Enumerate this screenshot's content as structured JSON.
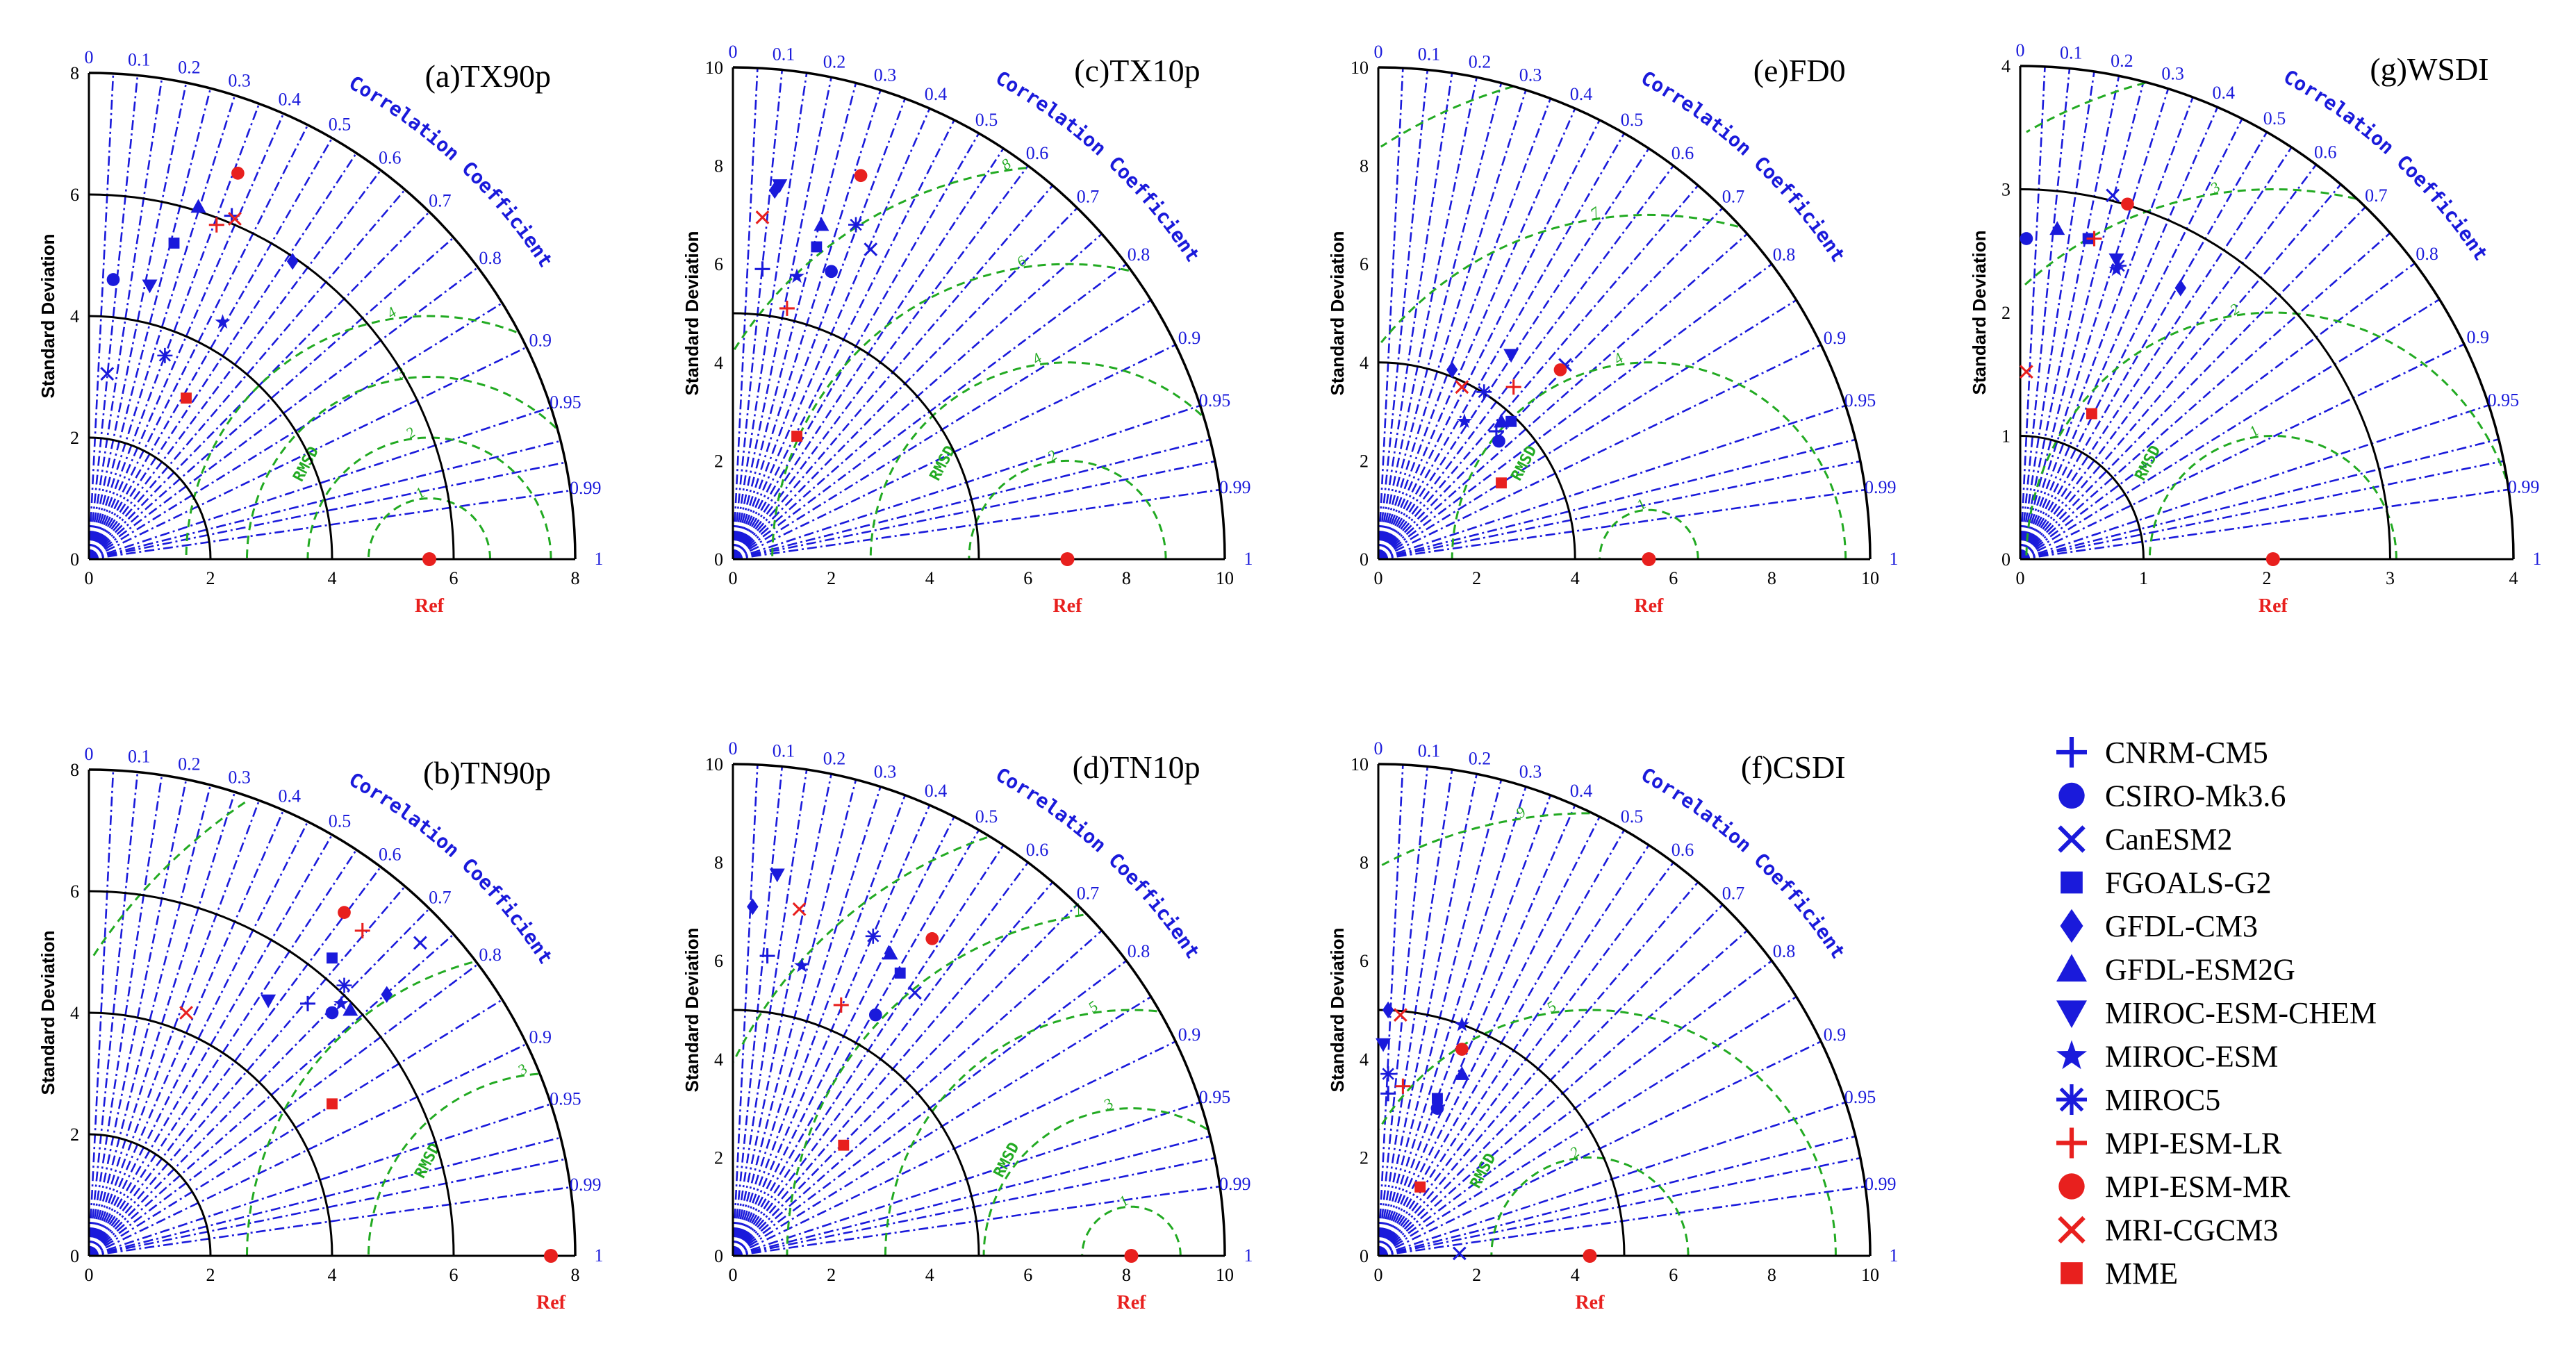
{
  "colors": {
    "model": "#1a1adb",
    "highlight": "#e8201e",
    "rms": "#22aa22",
    "axis": "#000000"
  },
  "labels": {
    "ylabel": "Standard Deviation",
    "ref": "Ref",
    "cc_title": "Correlation Coefficient",
    "rms": "RMSD"
  },
  "correlation_ticks": [
    "0",
    "0.1",
    "0.2",
    "0.3",
    "0.4",
    "0.5",
    "0.6",
    "0.7",
    "0.8",
    "0.9",
    "0.95",
    "0.99",
    "1"
  ],
  "legend": [
    {
      "name": "CNRM-CM5",
      "marker": "plus",
      "color": "#1a1adb"
    },
    {
      "name": "CSIRO-Mk3.6",
      "marker": "circle",
      "color": "#1a1adb"
    },
    {
      "name": "CanESM2",
      "marker": "x",
      "color": "#1a1adb"
    },
    {
      "name": "FGOALS-G2",
      "marker": "square",
      "color": "#1a1adb"
    },
    {
      "name": "GFDL-CM3",
      "marker": "diamond",
      "color": "#1a1adb"
    },
    {
      "name": "GFDL-ESM2G",
      "marker": "triangle",
      "color": "#1a1adb"
    },
    {
      "name": "MIROC-ESM-CHEM",
      "marker": "triangle-down",
      "color": "#1a1adb"
    },
    {
      "name": "MIROC-ESM",
      "marker": "star",
      "color": "#1a1adb"
    },
    {
      "name": "MIROC5",
      "marker": "asterisk",
      "color": "#1a1adb"
    },
    {
      "name": "MPI-ESM-LR",
      "marker": "plus",
      "color": "#e8201e"
    },
    {
      "name": "MPI-ESM-MR",
      "marker": "circle",
      "color": "#e8201e"
    },
    {
      "name": "MRI-CGCM3",
      "marker": "x",
      "color": "#e8201e"
    },
    {
      "name": "MME",
      "marker": "square",
      "color": "#e8201e"
    }
  ],
  "chart_data": [
    {
      "type": "scatter",
      "subtype": "taylor",
      "title": "(a)TX90p",
      "xlim": [
        0,
        8
      ],
      "ylim": [
        0,
        8
      ],
      "ticks": [
        "0",
        "2",
        "4",
        "6",
        "8"
      ],
      "arcs": [
        2,
        4,
        6
      ],
      "ref_std": 5.6,
      "rms_levels": [
        1,
        2,
        3,
        4
      ],
      "points": [
        {
          "model": "CNRM-CM5",
          "x": 2.35,
          "y": 5.65
        },
        {
          "model": "CSIRO-Mk3.6",
          "x": 0.4,
          "y": 4.6
        },
        {
          "model": "CanESM2",
          "x": 0.3,
          "y": 3.05
        },
        {
          "model": "FGOALS-G2",
          "x": 1.4,
          "y": 5.2
        },
        {
          "model": "GFDL-CM3",
          "x": 3.35,
          "y": 4.9
        },
        {
          "model": "GFDL-ESM2G",
          "x": 1.8,
          "y": 5.8
        },
        {
          "model": "MIROC-ESM-CHEM",
          "x": 1.0,
          "y": 4.5
        },
        {
          "model": "MIROC-ESM",
          "x": 2.2,
          "y": 3.9
        },
        {
          "model": "MIROC5",
          "x": 1.25,
          "y": 3.35
        },
        {
          "model": "MPI-ESM-LR",
          "x": 2.1,
          "y": 5.5
        },
        {
          "model": "MPI-ESM-MR",
          "x": 2.45,
          "y": 6.35
        },
        {
          "model": "MRI-CGCM3",
          "x": 2.4,
          "y": 5.6
        },
        {
          "model": "MME",
          "x": 1.6,
          "y": 2.65
        }
      ]
    },
    {
      "type": "scatter",
      "subtype": "taylor",
      "title": "(b)TN90p",
      "xlim": [
        0,
        8
      ],
      "ylim": [
        0,
        8
      ],
      "ticks": [
        "0",
        "2",
        "4",
        "6",
        "8"
      ],
      "arcs": [
        2,
        4,
        6
      ],
      "ref_std": 7.6,
      "rms_levels": [
        3,
        5,
        9
      ],
      "points": [
        {
          "model": "CNRM-CM5",
          "x": 3.6,
          "y": 4.15
        },
        {
          "model": "CSIRO-Mk3.6",
          "x": 4.0,
          "y": 4.0
        },
        {
          "model": "CanESM2",
          "x": 5.45,
          "y": 5.15
        },
        {
          "model": "FGOALS-G2",
          "x": 4.0,
          "y": 4.9
        },
        {
          "model": "GFDL-CM3",
          "x": 4.9,
          "y": 4.3
        },
        {
          "model": "GFDL-ESM2G",
          "x": 4.3,
          "y": 4.05
        },
        {
          "model": "MIROC-ESM-CHEM",
          "x": 2.95,
          "y": 4.2
        },
        {
          "model": "MIROC-ESM",
          "x": 4.15,
          "y": 4.15
        },
        {
          "model": "MIROC5",
          "x": 4.2,
          "y": 4.45
        },
        {
          "model": "MPI-ESM-LR",
          "x": 4.5,
          "y": 5.35
        },
        {
          "model": "MPI-ESM-MR",
          "x": 4.2,
          "y": 5.65
        },
        {
          "model": "MRI-CGCM3",
          "x": 1.6,
          "y": 4.0
        },
        {
          "model": "MME",
          "x": 4.0,
          "y": 2.5
        }
      ]
    },
    {
      "type": "scatter",
      "subtype": "taylor",
      "title": "(c)TX10p",
      "xlim": [
        0,
        10
      ],
      "ylim": [
        0,
        10
      ],
      "ticks": [
        "0",
        "2",
        "4",
        "6",
        "8",
        "10"
      ],
      "arcs": [
        5
      ],
      "ref_std": 6.8,
      "rms_levels": [
        2,
        4,
        6,
        8
      ],
      "points": [
        {
          "model": "CNRM-CM5",
          "x": 0.6,
          "y": 5.9
        },
        {
          "model": "CSIRO-Mk3.6",
          "x": 2.0,
          "y": 5.85
        },
        {
          "model": "CanESM2",
          "x": 2.8,
          "y": 6.3
        },
        {
          "model": "FGOALS-G2",
          "x": 1.7,
          "y": 6.35
        },
        {
          "model": "GFDL-CM3",
          "x": 0.85,
          "y": 7.5
        },
        {
          "model": "GFDL-ESM2G",
          "x": 1.8,
          "y": 6.8
        },
        {
          "model": "MIROC-ESM-CHEM",
          "x": 0.95,
          "y": 7.6
        },
        {
          "model": "MIROC-ESM",
          "x": 1.3,
          "y": 5.75
        },
        {
          "model": "MIROC5",
          "x": 2.5,
          "y": 6.8
        },
        {
          "model": "MPI-ESM-LR",
          "x": 1.1,
          "y": 5.1
        },
        {
          "model": "MPI-ESM-MR",
          "x": 2.6,
          "y": 7.8
        },
        {
          "model": "MRI-CGCM3",
          "x": 0.6,
          "y": 6.95
        },
        {
          "model": "MME",
          "x": 1.3,
          "y": 2.5
        }
      ]
    },
    {
      "type": "scatter",
      "subtype": "taylor",
      "title": "(d)TN10p",
      "xlim": [
        0,
        10
      ],
      "ylim": [
        0,
        10
      ],
      "ticks": [
        "0",
        "2",
        "4",
        "6",
        "8",
        "10"
      ],
      "arcs": [
        5
      ],
      "ref_std": 8.1,
      "rms_levels": [
        1,
        3,
        5,
        7,
        9
      ],
      "points": [
        {
          "model": "CNRM-CM5",
          "x": 0.7,
          "y": 6.1
        },
        {
          "model": "CSIRO-Mk3.6",
          "x": 2.9,
          "y": 4.9
        },
        {
          "model": "CanESM2",
          "x": 3.7,
          "y": 5.35
        },
        {
          "model": "FGOALS-G2",
          "x": 3.4,
          "y": 5.75
        },
        {
          "model": "GFDL-CM3",
          "x": 0.4,
          "y": 7.1
        },
        {
          "model": "GFDL-ESM2G",
          "x": 3.2,
          "y": 6.15
        },
        {
          "model": "MIROC-ESM-CHEM",
          "x": 0.9,
          "y": 7.75
        },
        {
          "model": "MIROC-ESM",
          "x": 1.4,
          "y": 5.9
        },
        {
          "model": "MIROC5",
          "x": 2.85,
          "y": 6.5
        },
        {
          "model": "MPI-ESM-LR",
          "x": 2.2,
          "y": 5.1
        },
        {
          "model": "MPI-ESM-MR",
          "x": 4.05,
          "y": 6.45
        },
        {
          "model": "MRI-CGCM3",
          "x": 1.35,
          "y": 7.05
        },
        {
          "model": "MME",
          "x": 2.25,
          "y": 2.25
        }
      ]
    },
    {
      "type": "scatter",
      "subtype": "taylor",
      "title": "(e)FD0",
      "xlim": [
        0,
        10
      ],
      "ylim": [
        0,
        10
      ],
      "ticks": [
        "0",
        "2",
        "4",
        "6",
        "8",
        "10"
      ],
      "arcs": [
        4
      ],
      "ref_std": 5.5,
      "rms_levels": [
        1,
        4,
        7,
        10
      ],
      "points": [
        {
          "model": "CNRM-CM5",
          "x": 2.4,
          "y": 2.6
        },
        {
          "model": "CSIRO-Mk3.6",
          "x": 2.45,
          "y": 2.4
        },
        {
          "model": "CanESM2",
          "x": 3.8,
          "y": 3.95
        },
        {
          "model": "FGOALS-G2",
          "x": 2.7,
          "y": 2.8
        },
        {
          "model": "GFDL-CM3",
          "x": 1.5,
          "y": 3.85
        },
        {
          "model": "GFDL-ESM2G",
          "x": 2.5,
          "y": 2.8
        },
        {
          "model": "MIROC-ESM-CHEM",
          "x": 2.7,
          "y": 4.15
        },
        {
          "model": "MIROC-ESM",
          "x": 1.75,
          "y": 2.8
        },
        {
          "model": "MIROC5",
          "x": 2.15,
          "y": 3.4
        },
        {
          "model": "MPI-ESM-LR",
          "x": 2.75,
          "y": 3.5
        },
        {
          "model": "MPI-ESM-MR",
          "x": 3.7,
          "y": 3.85
        },
        {
          "model": "MRI-CGCM3",
          "x": 1.7,
          "y": 3.5
        },
        {
          "model": "MME",
          "x": 2.5,
          "y": 1.55
        }
      ]
    },
    {
      "type": "scatter",
      "subtype": "taylor",
      "title": "(f)CSDI",
      "xlim": [
        0,
        10
      ],
      "ylim": [
        0,
        10
      ],
      "ticks": [
        "0",
        "2",
        "4",
        "6",
        "8",
        "10"
      ],
      "arcs": [
        5
      ],
      "ref_std": 4.3,
      "rms_levels": [
        2,
        5,
        9
      ],
      "points": [
        {
          "model": "CNRM-CM5",
          "x": 0.2,
          "y": 3.3
        },
        {
          "model": "CSIRO-Mk3.6",
          "x": 1.2,
          "y": 3.0
        },
        {
          "model": "CanESM2",
          "x": 1.65,
          "y": 0.05
        },
        {
          "model": "FGOALS-G2",
          "x": 1.2,
          "y": 3.2
        },
        {
          "model": "GFDL-CM3",
          "x": 0.2,
          "y": 5.0
        },
        {
          "model": "GFDL-ESM2G",
          "x": 1.7,
          "y": 3.7
        },
        {
          "model": "MIROC-ESM-CHEM",
          "x": 0.1,
          "y": 4.3
        },
        {
          "model": "MIROC-ESM",
          "x": 1.7,
          "y": 4.7
        },
        {
          "model": "MIROC5",
          "x": 0.2,
          "y": 3.7
        },
        {
          "model": "MPI-ESM-LR",
          "x": 0.5,
          "y": 3.45
        },
        {
          "model": "MPI-ESM-MR",
          "x": 1.7,
          "y": 4.2
        },
        {
          "model": "MRI-CGCM3",
          "x": 0.45,
          "y": 4.9
        },
        {
          "model": "MME",
          "x": 0.85,
          "y": 1.4
        }
      ]
    },
    {
      "type": "scatter",
      "subtype": "taylor",
      "title": "(g)WSDI",
      "xlim": [
        0,
        4
      ],
      "ylim": [
        0,
        4
      ],
      "ticks": [
        "0",
        "1",
        "2",
        "3",
        "4"
      ],
      "arcs": [
        1,
        3
      ],
      "ref_std": 2.05,
      "rms_levels": [
        1,
        2,
        3,
        4
      ],
      "points": [
        {
          "model": "CNRM-CM5",
          "x": 0.6,
          "y": 2.6
        },
        {
          "model": "CSIRO-Mk3.6",
          "x": 0.05,
          "y": 2.6
        },
        {
          "model": "CanESM2",
          "x": 0.75,
          "y": 2.95
        },
        {
          "model": "FGOALS-G2",
          "x": 0.55,
          "y": 2.6
        },
        {
          "model": "GFDL-CM3",
          "x": 1.3,
          "y": 2.2
        },
        {
          "model": "GFDL-ESM2G",
          "x": 0.3,
          "y": 2.68
        },
        {
          "model": "MIROC-ESM-CHEM",
          "x": 0.78,
          "y": 2.43
        },
        {
          "model": "MIROC-ESM",
          "x": 0.78,
          "y": 2.35
        },
        {
          "model": "MIROC5",
          "x": 0.8,
          "y": 2.38
        },
        {
          "model": "MPI-ESM-LR",
          "x": 0.6,
          "y": 2.6
        },
        {
          "model": "MPI-ESM-MR",
          "x": 0.87,
          "y": 2.88
        },
        {
          "model": "MRI-CGCM3",
          "x": 0.05,
          "y": 1.52
        },
        {
          "model": "MME",
          "x": 0.58,
          "y": 1.18
        }
      ]
    }
  ]
}
